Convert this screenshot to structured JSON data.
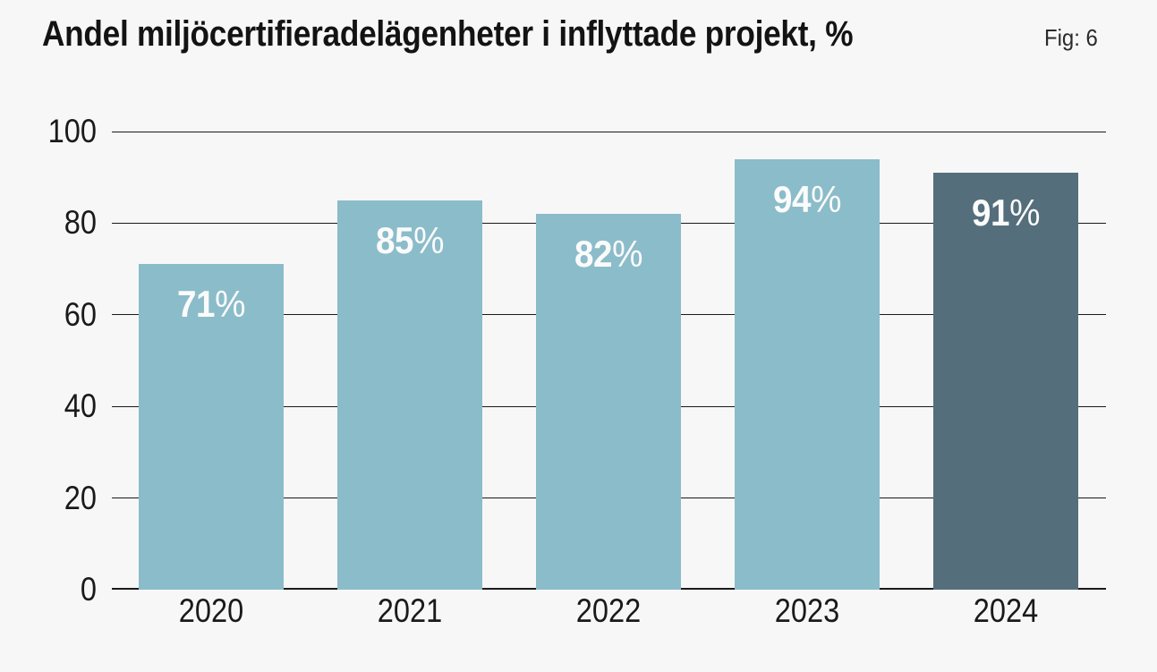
{
  "chart_data": {
    "type": "bar",
    "title": "Andel miljöcertifieradelägenheter i inflyttade projekt, %",
    "fig_label": "Fig: 6",
    "categories": [
      "2020",
      "2021",
      "2022",
      "2023",
      "2024"
    ],
    "values": [
      71,
      85,
      82,
      94,
      91
    ],
    "value_labels": [
      "71%",
      "85%",
      "82%",
      "94%",
      "91%"
    ],
    "xlabel": "",
    "ylabel": "",
    "ylim": [
      0,
      100
    ],
    "yticks": [
      0,
      20,
      40,
      60,
      80,
      100
    ],
    "grid": true,
    "legend": false,
    "bar_colors": [
      "#8bbcca",
      "#8bbcca",
      "#8bbcca",
      "#8bbcca",
      "#556e7c"
    ],
    "colors": {
      "bar_default": "#8bbcca",
      "bar_highlight": "#556e7c",
      "background": "#f7f7f7",
      "gridline": "#1a1a1a",
      "axis_text": "#1a1a1a",
      "title_text": "#131313",
      "fig_text": "#2a2a2a",
      "bar_label_text": "#fbfbfb"
    }
  }
}
